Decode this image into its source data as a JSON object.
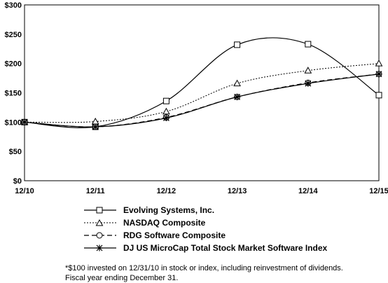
{
  "chart_data": {
    "type": "line",
    "categories": [
      "12/10",
      "12/11",
      "12/12",
      "12/13",
      "12/14",
      "12/15"
    ],
    "ylim": [
      0,
      300
    ],
    "yticks": [
      "$0",
      "$50",
      "$100",
      "$150",
      "$200",
      "$250",
      "$300"
    ],
    "grid": false,
    "legend_position": "bottom",
    "series": [
      {
        "name": "Evolving Systems, Inc.",
        "values": [
          100,
          92,
          136,
          232,
          233,
          146
        ],
        "line": "solid",
        "marker": "square"
      },
      {
        "name": "NASDAQ Composite",
        "values": [
          100,
          101,
          118,
          166,
          188,
          200
        ],
        "line": "dotted",
        "marker": "triangle"
      },
      {
        "name": "RDG Software Composite",
        "values": [
          100,
          92,
          108,
          143,
          167,
          182
        ],
        "line": "dashed",
        "marker": "circle"
      },
      {
        "name": "DJ US MicroCap Total Stock Market Software Index",
        "values": [
          100,
          92,
          107,
          143,
          166,
          182
        ],
        "line": "solid",
        "marker": "star"
      }
    ]
  },
  "footnote": {
    "line1": "*$100 invested on 12/31/10 in stock or index, including reinvestment of dividends.",
    "line2": "Fiscal year ending December 31."
  }
}
